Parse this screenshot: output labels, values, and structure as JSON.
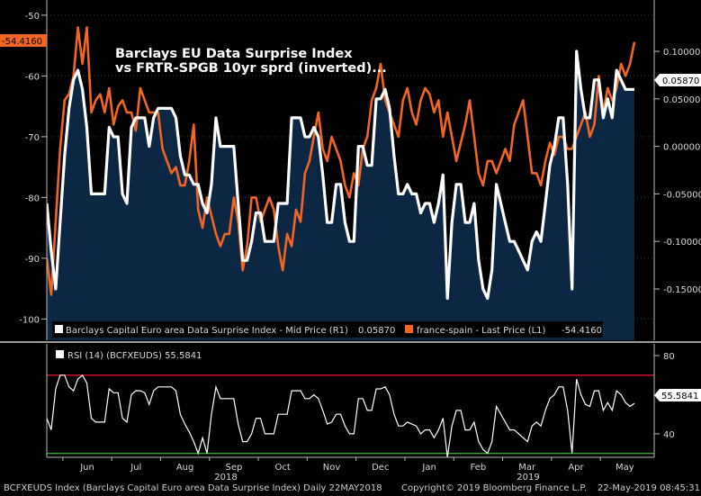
{
  "chart_data": [
    {
      "type": "area",
      "title": "Barclays EU Data Surprise Index",
      "subtitle": "vs FRTR-SPGB 10yr sprd (inverted)...",
      "left_axis": {
        "ticks": [
          -50,
          -60,
          -70,
          -80,
          -90,
          -100
        ],
        "range": [
          -103.5,
          -47.5
        ]
      },
      "right_axis": {
        "ticks": [
          "0.10000",
          "0.05000",
          "0.00000",
          "-0.05000",
          "-0.10000",
          "-0.15000"
        ],
        "range": [
          -0.204,
          0.154
        ]
      },
      "x_month_labels": [
        "Jun",
        "Jul",
        "Aug",
        "Sep",
        "Oct",
        "Nov",
        "Dec",
        "Jan",
        "Feb",
        "Mar",
        "Apr",
        "May"
      ],
      "x_year_labels": [
        "2018",
        "2019"
      ],
      "legend": [
        {
          "label": "Barclays Capital Euro area Data Surprise Index - Mid Price (R1)",
          "value": "0.05870",
          "color": "#ffffff"
        },
        {
          "label": "france-spain - Last Price (L1)",
          "value": "-54.4160",
          "color": "#f26522"
        }
      ],
      "last_value_tags": {
        "left": "-54.4160",
        "right": "0.05870"
      },
      "series": [
        {
          "name": "Barclays Capital Euro area Data Surprise Index - Mid Price (R1)",
          "axis": "right",
          "color": "#ffffff",
          "fill": "#0b2744",
          "x": [
            0,
            1,
            2,
            3,
            4,
            5,
            6,
            7,
            8,
            9,
            10,
            11,
            12,
            13,
            14,
            15,
            16,
            17,
            18,
            19,
            20,
            21,
            22,
            23,
            24,
            25,
            26,
            27,
            28,
            29,
            30,
            31,
            32,
            33,
            34,
            35,
            36,
            37,
            38,
            39,
            40,
            41,
            42,
            43,
            44,
            45,
            46,
            47,
            48,
            49,
            50,
            51,
            52,
            53,
            54,
            55,
            56,
            57,
            58,
            59,
            60,
            61,
            62,
            63,
            64,
            65,
            66,
            67,
            68,
            69,
            70,
            71,
            72,
            73,
            74,
            75,
            76,
            77,
            78,
            79,
            80,
            81,
            82,
            83,
            84,
            85,
            86,
            87,
            88,
            89,
            90,
            91,
            92,
            93,
            94,
            95,
            96,
            97,
            98,
            99,
            100,
            101,
            102,
            103,
            104,
            105,
            106,
            107,
            108,
            109,
            110,
            111,
            112,
            113,
            114,
            115,
            116,
            117,
            118,
            119,
            120,
            121,
            122,
            123,
            124,
            125,
            126,
            127,
            128,
            129,
            130,
            131,
            132
          ],
          "values": [
            -0.06,
            -0.11,
            -0.15,
            -0.08,
            -0.01,
            0.04,
            0.07,
            0.08,
            0.06,
            0.02,
            -0.05,
            -0.05,
            -0.05,
            -0.05,
            0.02,
            0.01,
            0.01,
            -0.05,
            -0.06,
            0.02,
            0.03,
            0.03,
            0.03,
            0.0,
            0.03,
            0.04,
            0.04,
            0.04,
            0.04,
            0.03,
            -0.01,
            -0.03,
            -0.03,
            -0.04,
            -0.04,
            -0.06,
            -0.07,
            -0.04,
            0.03,
            0.0,
            0.0,
            0.0,
            0.0,
            -0.06,
            -0.12,
            -0.12,
            -0.1,
            -0.07,
            -0.07,
            -0.1,
            -0.1,
            -0.1,
            -0.06,
            -0.06,
            -0.06,
            0.03,
            0.03,
            0.03,
            0.01,
            0.01,
            0.02,
            0.01,
            -0.03,
            -0.08,
            -0.08,
            -0.04,
            -0.04,
            -0.08,
            -0.1,
            -0.1,
            0.0,
            0.0,
            -0.02,
            -0.02,
            0.05,
            0.05,
            0.06,
            0.04,
            -0.01,
            -0.05,
            -0.05,
            -0.04,
            -0.05,
            -0.05,
            -0.07,
            -0.06,
            -0.06,
            -0.08,
            -0.06,
            -0.03,
            -0.16,
            -0.08,
            -0.04,
            -0.04,
            -0.08,
            -0.08,
            -0.06,
            -0.12,
            -0.15,
            -0.16,
            -0.13,
            -0.04,
            -0.06,
            -0.08,
            -0.1,
            -0.1,
            -0.11,
            -0.12,
            -0.13,
            -0.1,
            -0.09,
            -0.1,
            -0.06,
            -0.02,
            0.0,
            0.03,
            0.03,
            -0.04,
            -0.15,
            0.1,
            0.06,
            0.03,
            0.03,
            0.07,
            0.07,
            0.03,
            0.05,
            0.03,
            0.08,
            0.07,
            0.06,
            0.06,
            0.06
          ]
        },
        {
          "name": "france-spain - Last Price (L1)",
          "axis": "left",
          "color": "#f26522",
          "x": [
            0,
            1,
            2,
            3,
            4,
            5,
            6,
            7,
            8,
            9,
            10,
            11,
            12,
            13,
            14,
            15,
            16,
            17,
            18,
            19,
            20,
            21,
            22,
            23,
            24,
            25,
            26,
            27,
            28,
            29,
            30,
            31,
            32,
            33,
            34,
            35,
            36,
            37,
            38,
            39,
            40,
            41,
            42,
            43,
            44,
            45,
            46,
            47,
            48,
            49,
            50,
            51,
            52,
            53,
            54,
            55,
            56,
            57,
            58,
            59,
            60,
            61,
            62,
            63,
            64,
            65,
            66,
            67,
            68,
            69,
            70,
            71,
            72,
            73,
            74,
            75,
            76,
            77,
            78,
            79,
            80,
            81,
            82,
            83,
            84,
            85,
            86,
            87,
            88,
            89,
            90,
            91,
            92,
            93,
            94,
            95,
            96,
            97,
            98,
            99,
            100,
            101,
            102,
            103,
            104,
            105,
            106,
            107,
            108,
            109,
            110,
            111,
            112,
            113,
            114,
            115,
            116,
            117,
            118,
            119,
            120,
            121,
            122,
            123,
            124,
            125,
            126,
            127,
            128,
            129,
            130,
            131,
            132
          ],
          "values": [
            -90,
            -96,
            -84,
            -72,
            -64,
            -63,
            -60,
            -52,
            -58,
            -52,
            -66,
            -64,
            -63,
            -66,
            -62,
            -68,
            -65,
            -64,
            -66,
            -66,
            -69,
            -62,
            -64,
            -66,
            -66,
            -66,
            -72,
            -74,
            -76,
            -75,
            -78,
            -78,
            -74,
            -68,
            -82,
            -85,
            -80,
            -83,
            -86,
            -88,
            -86,
            -86,
            -80,
            -84,
            -92,
            -88,
            -80,
            -80,
            -84,
            -82,
            -80,
            -82,
            -88,
            -92,
            -86,
            -88,
            -82,
            -84,
            -76,
            -74,
            -70,
            -66,
            -72,
            -74,
            -70,
            -72,
            -74,
            -78,
            -80,
            -76,
            -78,
            -72,
            -70,
            -64,
            -62,
            -58,
            -64,
            -66,
            -68,
            -70,
            -64,
            -62,
            -66,
            -68,
            -64,
            -62,
            -63,
            -66,
            -64,
            -70,
            -66,
            -70,
            -74,
            -71,
            -68,
            -64,
            -70,
            -76,
            -78,
            -74,
            -74,
            -76,
            -74,
            -72,
            -74,
            -68,
            -66,
            -64,
            -70,
            -76,
            -76,
            -78,
            -74,
            -71,
            -73,
            -70,
            -70,
            -72,
            -72,
            -70,
            -68,
            -66,
            -70,
            -68,
            -60,
            -66,
            -62,
            -64,
            -62,
            -58,
            -60,
            -58,
            -54.4
          ]
        }
      ]
    },
    {
      "type": "line",
      "legend": "RSI (14) (BCFXEUDS) 55.5841",
      "last_value_tag": "55.5841",
      "y_axis": {
        "ticks": [
          80,
          60,
          40
        ],
        "range": [
          28,
          86
        ]
      },
      "reference_lines": [
        {
          "value": 70,
          "color": "#c8102e"
        },
        {
          "value": 30,
          "color": "#2ea82e"
        }
      ],
      "series": [
        {
          "name": "RSI (14) (BCFXEUDS)",
          "color": "#ffffff",
          "x": [
            0,
            1,
            2,
            3,
            4,
            5,
            6,
            7,
            8,
            9,
            10,
            11,
            12,
            13,
            14,
            15,
            16,
            17,
            18,
            19,
            20,
            21,
            22,
            23,
            24,
            25,
            26,
            27,
            28,
            29,
            30,
            31,
            32,
            33,
            34,
            35,
            36,
            37,
            38,
            39,
            40,
            41,
            42,
            43,
            44,
            45,
            46,
            47,
            48,
            49,
            50,
            51,
            52,
            53,
            54,
            55,
            56,
            57,
            58,
            59,
            60,
            61,
            62,
            63,
            64,
            65,
            66,
            67,
            68,
            69,
            70,
            71,
            72,
            73,
            74,
            75,
            76,
            77,
            78,
            79,
            80,
            81,
            82,
            83,
            84,
            85,
            86,
            87,
            88,
            89,
            90,
            91,
            92,
            93,
            94,
            95,
            96,
            97,
            98,
            99,
            100,
            101,
            102,
            103,
            104,
            105,
            106,
            107,
            108,
            109,
            110,
            111,
            112,
            113,
            114,
            115,
            116,
            117,
            118,
            119,
            120,
            121,
            122,
            123,
            124,
            125,
            126,
            127,
            128,
            129,
            130,
            131,
            132
          ],
          "values": [
            48,
            42,
            63,
            70,
            70,
            64,
            62,
            68,
            70,
            66,
            48,
            46,
            46,
            46,
            63,
            61,
            61,
            48,
            46,
            60,
            62,
            62,
            61,
            55,
            62,
            64,
            64,
            64,
            64,
            62,
            50,
            45,
            41,
            36,
            30,
            38,
            30,
            50,
            64,
            58,
            58,
            58,
            58,
            45,
            36,
            36,
            40,
            48,
            48,
            40,
            40,
            40,
            50,
            50,
            50,
            62,
            62,
            62,
            58,
            58,
            60,
            58,
            52,
            45,
            46,
            50,
            50,
            44,
            40,
            40,
            58,
            58,
            52,
            52,
            63,
            63,
            64,
            60,
            50,
            44,
            44,
            46,
            45,
            44,
            40,
            42,
            42,
            38,
            42,
            48,
            28,
            44,
            52,
            52,
            42,
            42,
            46,
            36,
            32,
            30,
            36,
            54,
            50,
            46,
            42,
            42,
            40,
            38,
            36,
            44,
            46,
            44,
            52,
            58,
            60,
            64,
            64,
            52,
            30,
            68,
            60,
            55,
            54,
            62,
            62,
            52,
            56,
            52,
            62,
            60,
            56,
            54,
            55.6
          ]
        }
      ]
    }
  ],
  "x_axis_labels": [
    "Jun",
    "Jul",
    "Aug",
    "Sep",
    "Oct",
    "Nov",
    "Dec",
    "Jan",
    "Feb",
    "Mar",
    "Apr",
    "May"
  ],
  "year_labels": [
    "2018",
    "2019"
  ],
  "footer": {
    "left": "BCFXEUDS Index (Barclays Capital Euro area Data Surprise Index)  Daily 22MAY2018",
    "center": "Copyright© 2019 Bloomberg Finance L.P.",
    "right": "22-May-2019 08:45:31"
  }
}
